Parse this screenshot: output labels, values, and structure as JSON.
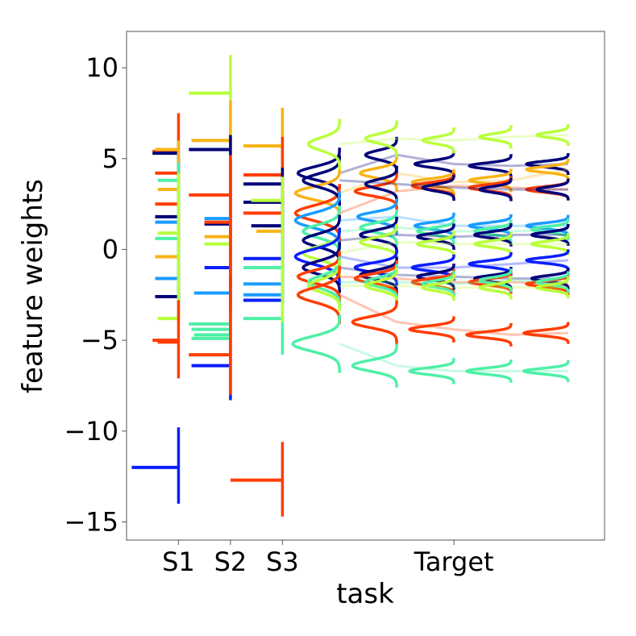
{
  "chart_data": {
    "type": "line",
    "xlabel": "task",
    "ylabel": "feature weights",
    "ylim": [
      -16,
      12
    ],
    "grid": false,
    "legend": "none",
    "x_tick_labels": [
      "S1",
      "S2",
      "S3",
      "Target"
    ],
    "y_ticks": [
      10,
      5,
      0,
      -5,
      -10,
      -15
    ],
    "y_tick_labels": [
      "10",
      "5",
      "0",
      "−5",
      "−10",
      "−15"
    ],
    "tasks": [
      {
        "name": "S1",
        "sources": [
          {
            "range": [
              -2.9,
              7.5
            ],
            "color": "#ff3d00",
            "marks": [
              5.4,
              4.2,
              2.5,
              -5.0
            ],
            "lengths": [
              0.5,
              0.45,
              0.45,
              0.5
            ]
          },
          {
            "range": [
              -14.0,
              -9.8
            ],
            "color": "#0a1eff",
            "marks": [
              -12.0
            ],
            "lengths": [
              0.9
            ]
          },
          {
            "range": [
              -2.9,
              5.2
            ],
            "color": "#00007a",
            "marks": [
              5.3,
              1.8,
              -2.6
            ],
            "lengths": [
              0.5,
              0.45,
              0.45
            ]
          },
          {
            "range": [
              -2.0,
              6.0
            ],
            "color": "#1a9cff",
            "marks": [
              1.5,
              -1.6
            ],
            "lengths": [
              0.45,
              0.45
            ]
          },
          {
            "range": [
              -1.0,
              6.0
            ],
            "color": "#f9b316",
            "marks": [
              5.5,
              3.3,
              -0.4
            ],
            "lengths": [
              0.45,
              0.4,
              0.45
            ]
          },
          {
            "range": [
              -4.0,
              4.8
            ],
            "color": "#4df0a6",
            "marks": [
              3.8,
              0.6
            ],
            "lengths": [
              0.4,
              0.45
            ]
          },
          {
            "range": [
              -4.0,
              4.2
            ],
            "color": "#b8ff3a",
            "marks": [
              0.9,
              -3.8
            ],
            "lengths": [
              0.4,
              0.4
            ]
          },
          {
            "range": [
              -7.1,
              -2.8
            ],
            "color": "#ff3d00",
            "marks": [
              -5.1
            ],
            "lengths": [
              0.4
            ]
          }
        ]
      },
      {
        "name": "S2",
        "sources": [
          {
            "range": [
              -1.0,
              10.7
            ],
            "color": "#b8ff3a",
            "marks": [
              8.6,
              0.3
            ],
            "lengths": [
              0.8,
              0.5
            ]
          },
          {
            "range": [
              -0.5,
              8.2
            ],
            "color": "#f9b316",
            "marks": [
              6.0,
              0.7
            ],
            "lengths": [
              0.75,
              0.5
            ]
          },
          {
            "range": [
              -3.5,
              6.3
            ],
            "color": "#00007a",
            "marks": [
              5.5,
              1.4
            ],
            "lengths": [
              0.8,
              0.5
            ]
          },
          {
            "range": [
              -2.0,
              5.0
            ],
            "color": "#ff3d00",
            "marks": [
              3.0,
              1.5
            ],
            "lengths": [
              0.8,
              0.5
            ]
          },
          {
            "range": [
              -3.0,
              3.2
            ],
            "color": "#1a9cff",
            "marks": [
              1.7,
              -2.4
            ],
            "lengths": [
              0.5,
              0.7
            ]
          },
          {
            "range": [
              -8.3,
              -1.5
            ],
            "color": "#0a1eff",
            "marks": [
              -1.0,
              -6.4
            ],
            "lengths": [
              0.5,
              0.75
            ]
          },
          {
            "range": [
              -5.5,
              -3.5
            ],
            "color": "#4df0a6",
            "marks": [
              -4.1,
              -4.4,
              -4.7,
              -4.9
            ],
            "lengths": [
              0.8,
              0.75,
              0.7,
              0.75
            ]
          },
          {
            "range": [
              -8.0,
              5.2
            ],
            "color": "#ff3d00",
            "marks": [
              -5.8
            ],
            "lengths": [
              0.8
            ]
          }
        ]
      },
      {
        "name": "S3",
        "sources": [
          {
            "range": [
              -1.0,
              7.8
            ],
            "color": "#f9b316",
            "marks": [
              5.7,
              1.0
            ],
            "lengths": [
              0.75,
              0.5
            ]
          },
          {
            "range": [
              -0.5,
              6.2
            ],
            "color": "#ff3d00",
            "marks": [
              4.1,
              2.0
            ],
            "lengths": [
              0.75,
              0.75
            ]
          },
          {
            "range": [
              -3.0,
              4.5
            ],
            "color": "#00007a",
            "marks": [
              3.6,
              2.6,
              1.3
            ],
            "lengths": [
              0.75,
              0.75,
              0.6
            ]
          },
          {
            "range": [
              -3.0,
              3.0
            ],
            "color": "#0a1eff",
            "marks": [
              -0.5,
              -2.8
            ],
            "lengths": [
              0.75,
              0.75
            ]
          },
          {
            "range": [
              -3.0,
              2.5
            ],
            "color": "#1a9cff",
            "marks": [
              -1.9,
              -2.5
            ],
            "lengths": [
              0.75,
              0.75
            ]
          },
          {
            "range": [
              -5.8,
              -1.0
            ],
            "color": "#4df0a6",
            "marks": [
              -1.0,
              -3.8
            ],
            "lengths": [
              0.75,
              0.75
            ]
          },
          {
            "range": [
              -4.0,
              4.0
            ],
            "color": "#b8ff3a",
            "marks": [
              2.7
            ],
            "lengths": [
              0.6
            ]
          },
          {
            "range": [
              -14.7,
              -10.6
            ],
            "color": "#ff3d00",
            "marks": [
              -12.7
            ],
            "lengths": [
              1.0
            ]
          }
        ]
      }
    ],
    "target_step_positions": [
      4.1,
      5.2,
      6.3,
      7.4,
      8.5
    ],
    "target_series": [
      {
        "color": "#00007a",
        "peaks": [
          4.2,
          5.2,
          4.7,
          4.6,
          4.7
        ],
        "amplitudes": [
          0.8,
          0.6,
          0.75,
          0.8,
          0.8
        ],
        "widths": [
          0.35,
          0.25,
          0.18,
          0.16,
          0.15
        ]
      },
      {
        "color": "#f9b316",
        "peaks": [
          3.1,
          4.2,
          3.7,
          3.8,
          4.4
        ],
        "amplitudes": [
          0.85,
          0.7,
          0.8,
          0.8,
          0.8
        ],
        "widths": [
          0.35,
          0.25,
          0.18,
          0.16,
          0.15
        ]
      },
      {
        "color": "#ff3d00",
        "peaks": [
          2.0,
          3.2,
          3.5,
          3.4,
          3.3
        ],
        "amplitudes": [
          0.85,
          0.8,
          0.8,
          0.8,
          0.8
        ],
        "widths": [
          0.4,
          0.25,
          0.18,
          0.16,
          0.15
        ]
      },
      {
        "color": "#00007a",
        "peaks": [
          3.8,
          3.6,
          3.4,
          3.3,
          3.3
        ],
        "amplitudes": [
          0.7,
          0.6,
          0.6,
          0.6,
          0.6
        ],
        "widths": [
          0.35,
          0.25,
          0.18,
          0.16,
          0.15
        ]
      },
      {
        "color": "#b8ff3a",
        "peaks": [
          5.8,
          6.1,
          6.0,
          6.2,
          6.3
        ],
        "amplitudes": [
          0.6,
          0.6,
          0.6,
          0.6,
          0.6
        ],
        "widths": [
          0.35,
          0.25,
          0.18,
          0.16,
          0.15
        ]
      },
      {
        "color": "#1a9cff",
        "peaks": [
          1.6,
          1.8,
          1.3,
          1.3,
          1.3
        ],
        "amplitudes": [
          0.85,
          0.75,
          0.75,
          0.8,
          0.8
        ],
        "widths": [
          0.4,
          0.25,
          0.18,
          0.16,
          0.15
        ]
      },
      {
        "color": "#4df0a6",
        "peaks": [
          1.0,
          1.2,
          1.0,
          1.0,
          1.1
        ],
        "amplitudes": [
          0.7,
          0.7,
          0.7,
          0.7,
          0.7
        ],
        "widths": [
          0.35,
          0.25,
          0.18,
          0.16,
          0.15
        ]
      },
      {
        "color": "#00007a",
        "peaks": [
          0.5,
          0.8,
          0.7,
          0.8,
          0.8
        ],
        "amplitudes": [
          0.7,
          0.7,
          0.7,
          0.7,
          0.7
        ],
        "widths": [
          0.35,
          0.25,
          0.18,
          0.16,
          0.15
        ]
      },
      {
        "color": "#b8ff3a",
        "peaks": [
          -0.2,
          0.4,
          0.3,
          0.3,
          0.3
        ],
        "amplitudes": [
          0.7,
          0.7,
          0.7,
          0.7,
          0.7
        ],
        "widths": [
          0.35,
          0.25,
          0.18,
          0.16,
          0.15
        ]
      },
      {
        "color": "#0a1eff",
        "peaks": [
          -0.4,
          -1.0,
          -1.0,
          -0.8,
          -0.6
        ],
        "amplitudes": [
          0.85,
          0.8,
          0.8,
          0.8,
          0.8
        ],
        "widths": [
          0.4,
          0.25,
          0.18,
          0.16,
          0.15
        ]
      },
      {
        "color": "#00007a",
        "peaks": [
          -1.0,
          -1.4,
          -1.5,
          -1.6,
          -1.6
        ],
        "amplitudes": [
          0.7,
          0.7,
          0.7,
          0.7,
          0.7
        ],
        "widths": [
          0.35,
          0.25,
          0.18,
          0.16,
          0.15
        ]
      },
      {
        "color": "#ff3d00",
        "peaks": [
          -1.5,
          -1.6,
          -1.8,
          -1.8,
          -1.9
        ],
        "amplitudes": [
          0.8,
          0.8,
          0.8,
          0.8,
          0.8
        ],
        "widths": [
          0.35,
          0.25,
          0.18,
          0.16,
          0.15
        ]
      },
      {
        "color": "#4df0a6",
        "peaks": [
          -1.8,
          -1.8,
          -1.9,
          -1.7,
          -1.8
        ],
        "amplitudes": [
          0.6,
          0.6,
          0.6,
          0.6,
          0.6
        ],
        "widths": [
          0.35,
          0.25,
          0.18,
          0.16,
          0.15
        ]
      },
      {
        "color": "#b8ff3a",
        "peaks": [
          -2.0,
          -2.0,
          -2.1,
          -2.1,
          -2.1
        ],
        "amplitudes": [
          0.6,
          0.6,
          0.6,
          0.6,
          0.6
        ],
        "widths": [
          0.35,
          0.25,
          0.18,
          0.16,
          0.15
        ]
      },
      {
        "color": "#ff3d00",
        "peaks": [
          -2.5,
          -4.0,
          -4.4,
          -4.7,
          -4.6
        ],
        "amplitudes": [
          0.8,
          0.85,
          0.85,
          0.85,
          0.85
        ],
        "widths": [
          0.4,
          0.3,
          0.18,
          0.16,
          0.15
        ]
      },
      {
        "color": "#4df0a6",
        "peaks": [
          -5.2,
          -6.4,
          -6.7,
          -6.7,
          -6.7
        ],
        "amplitudes": [
          0.9,
          0.85,
          0.85,
          0.85,
          0.85
        ],
        "widths": [
          0.4,
          0.3,
          0.18,
          0.16,
          0.15
        ]
      }
    ]
  }
}
